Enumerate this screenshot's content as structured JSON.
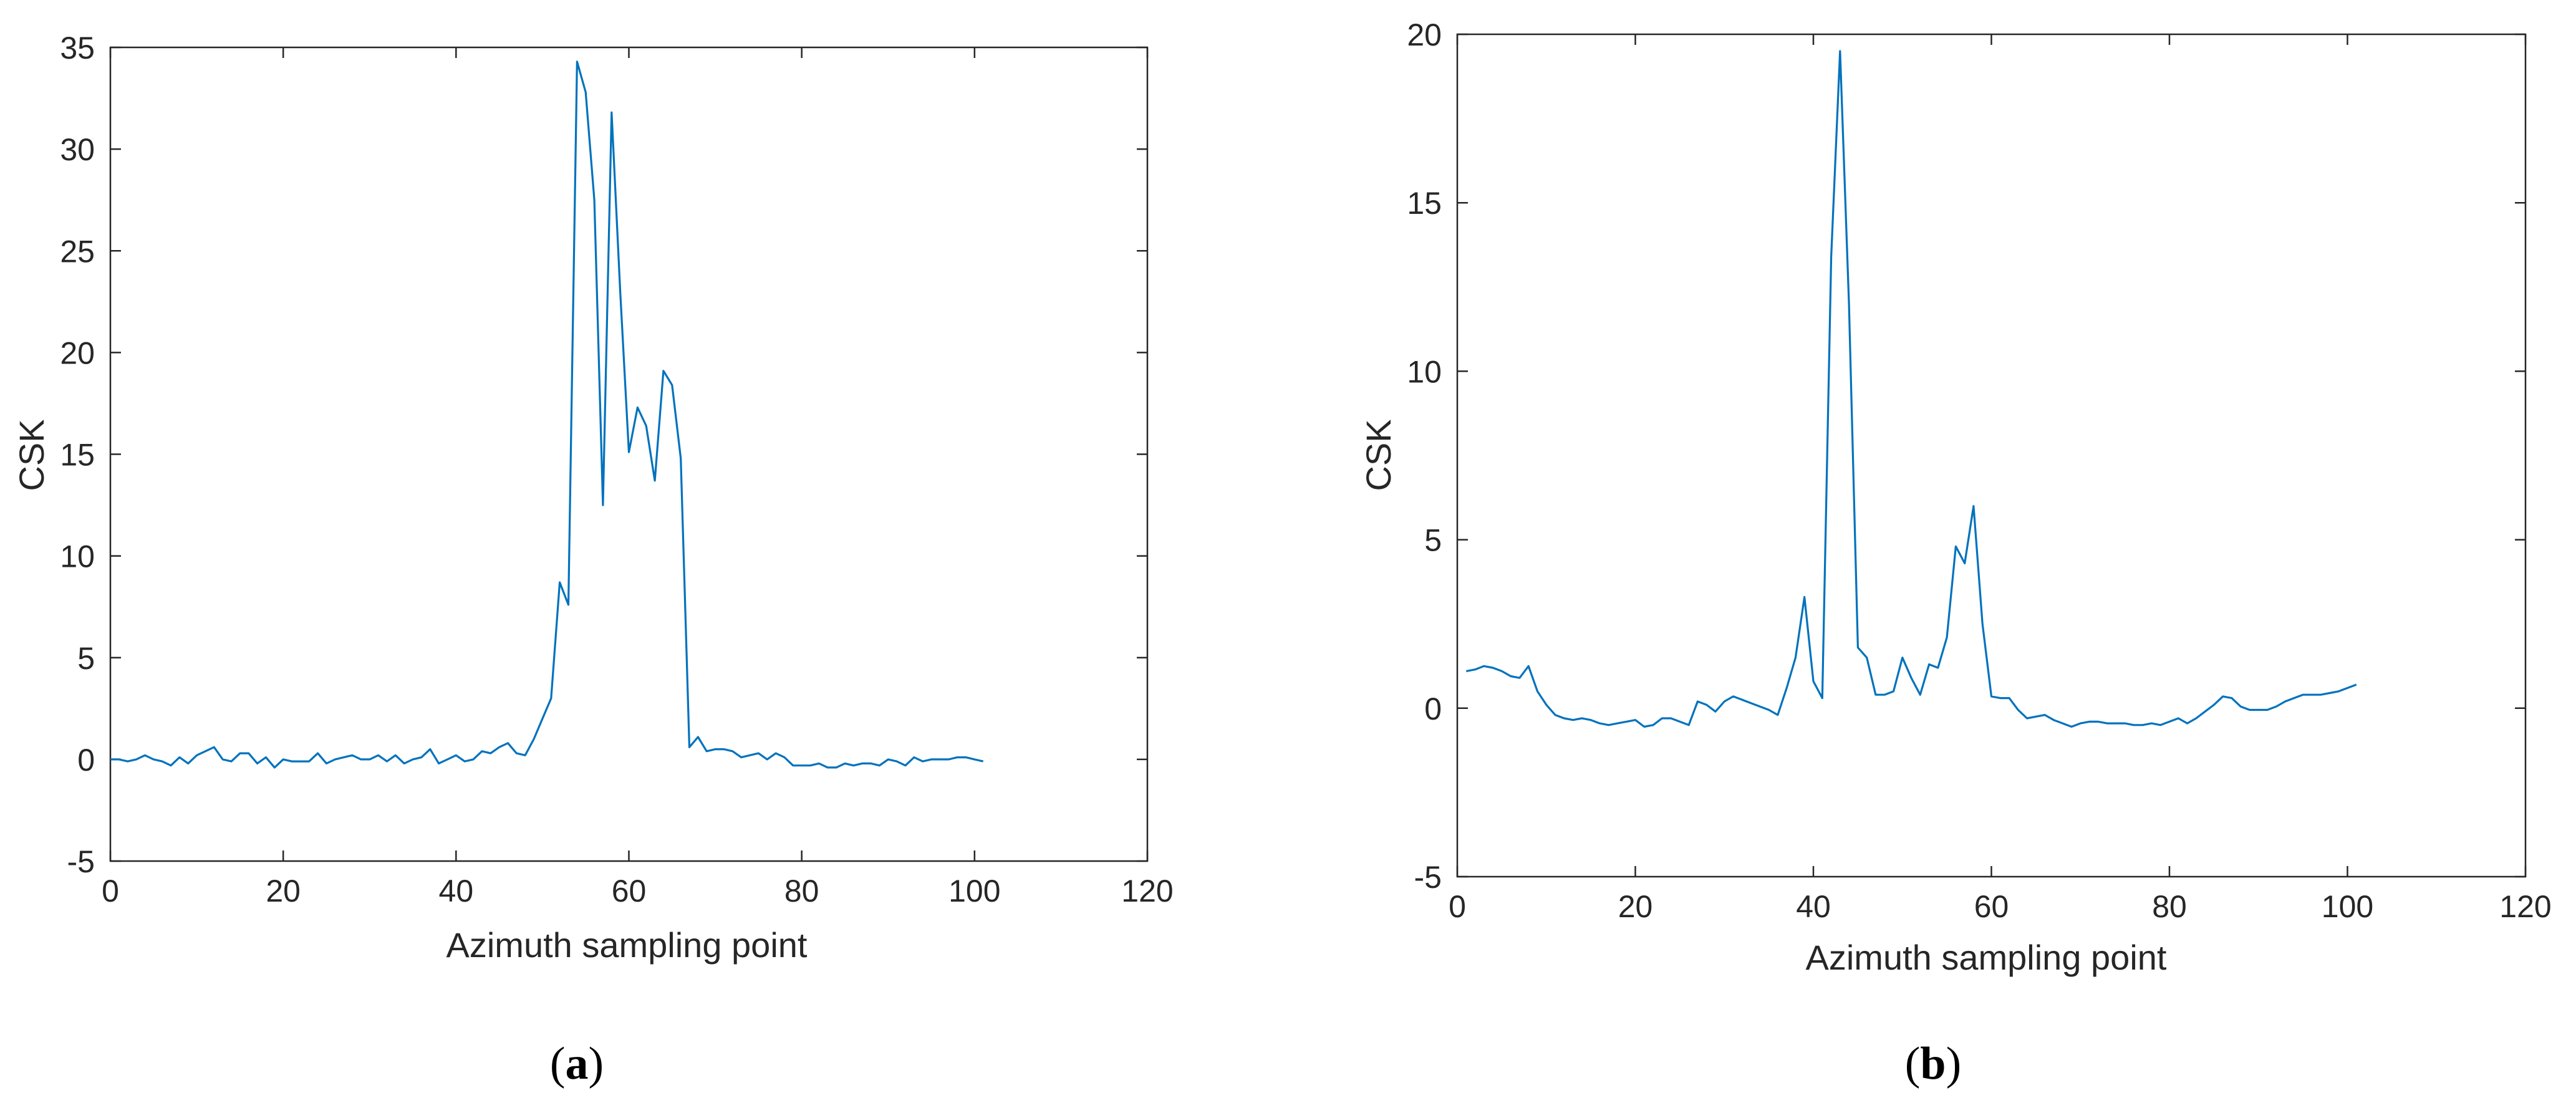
{
  "colors": {
    "series": "#0072BD",
    "axis": "#262626"
  },
  "panels": [
    {
      "label_open": "(",
      "label_letter": "a",
      "label_close": ")",
      "chart_data": {
        "type": "line",
        "xlabel": "Azimuth sampling point",
        "ylabel": "CSK",
        "xlim": [
          0,
          120
        ],
        "ylim": [
          -5,
          35
        ],
        "xticks": [
          0,
          20,
          40,
          60,
          80,
          100,
          120
        ],
        "yticks": [
          -5,
          0,
          5,
          10,
          15,
          20,
          25,
          30,
          35
        ],
        "grid": false,
        "x": [
          0,
          1,
          2,
          3,
          4,
          5,
          6,
          7,
          8,
          9,
          10,
          11,
          12,
          13,
          14,
          15,
          16,
          17,
          18,
          19,
          20,
          21,
          22,
          23,
          24,
          25,
          26,
          27,
          28,
          29,
          30,
          31,
          32,
          33,
          34,
          35,
          36,
          37,
          38,
          39,
          40,
          41,
          42,
          43,
          44,
          45,
          46,
          47,
          48,
          49,
          50,
          51,
          52,
          53,
          54,
          55,
          56,
          57,
          58,
          59,
          60,
          61,
          62,
          63,
          64,
          65,
          66,
          67,
          68,
          69,
          70,
          71,
          72,
          73,
          74,
          75,
          76,
          77,
          78,
          79,
          80,
          81,
          82,
          83,
          84,
          85,
          86,
          87,
          88,
          89,
          90,
          91,
          92,
          93,
          94,
          95,
          96,
          97,
          98,
          99,
          100,
          101
        ],
        "values": [
          0.0,
          0.0,
          -0.1,
          0.0,
          0.2,
          0.0,
          -0.1,
          -0.3,
          0.1,
          -0.2,
          0.2,
          0.4,
          0.6,
          0.0,
          -0.1,
          0.3,
          0.3,
          -0.2,
          0.1,
          -0.4,
          0.0,
          -0.1,
          -0.1,
          -0.1,
          0.3,
          -0.2,
          0.0,
          0.1,
          0.2,
          0.0,
          0.0,
          0.2,
          -0.1,
          0.2,
          -0.2,
          0.0,
          0.1,
          0.5,
          -0.2,
          0.0,
          0.2,
          -0.1,
          0.0,
          0.4,
          0.3,
          0.6,
          0.8,
          0.3,
          0.2,
          1.0,
          2.0,
          3.0,
          8.7,
          7.6,
          34.3,
          32.8,
          27.5,
          12.5,
          31.8,
          23.0,
          15.1,
          17.3,
          16.4,
          13.7,
          19.1,
          18.4,
          14.8,
          0.6,
          1.1,
          0.4,
          0.5,
          0.5,
          0.4,
          0.1,
          0.2,
          0.3,
          0.0,
          0.3,
          0.1,
          -0.3,
          -0.3,
          -0.3,
          -0.2,
          -0.4,
          -0.4,
          -0.2,
          -0.3,
          -0.2,
          -0.2,
          -0.3,
          0.0,
          -0.1,
          -0.3,
          0.1,
          -0.1,
          0.0,
          0.0,
          0.0,
          0.1,
          0.1,
          0.0,
          -0.1
        ]
      }
    },
    {
      "label_open": "(",
      "label_letter": "b",
      "label_close": ")",
      "chart_data": {
        "type": "line",
        "xlabel": "Azimuth sampling point",
        "ylabel": "CSK",
        "xlim": [
          0,
          120
        ],
        "ylim": [
          -5,
          20
        ],
        "xticks": [
          0,
          20,
          40,
          60,
          80,
          100,
          120
        ],
        "yticks": [
          -5,
          0,
          5,
          10,
          15,
          20
        ],
        "grid": false,
        "x": [
          1,
          2,
          3,
          4,
          5,
          6,
          7,
          8,
          9,
          10,
          11,
          12,
          13,
          14,
          15,
          16,
          17,
          18,
          19,
          20,
          21,
          22,
          23,
          24,
          25,
          26,
          27,
          28,
          29,
          30,
          31,
          32,
          33,
          34,
          35,
          36,
          37,
          38,
          39,
          40,
          41,
          42,
          43,
          44,
          45,
          46,
          47,
          48,
          49,
          50,
          51,
          52,
          53,
          54,
          55,
          56,
          57,
          58,
          59,
          60,
          61,
          62,
          63,
          64,
          65,
          66,
          67,
          68,
          69,
          70,
          71,
          72,
          73,
          74,
          75,
          76,
          77,
          78,
          79,
          80,
          81,
          82,
          83,
          84,
          85,
          86,
          87,
          88,
          89,
          90,
          91,
          92,
          93,
          94,
          95,
          96,
          97,
          98,
          99,
          100,
          101
        ],
        "values": [
          1.1,
          1.15,
          1.25,
          1.2,
          1.1,
          0.95,
          0.9,
          1.25,
          0.5,
          0.1,
          -0.2,
          -0.3,
          -0.35,
          -0.3,
          -0.35,
          -0.45,
          -0.5,
          -0.45,
          -0.4,
          -0.35,
          -0.55,
          -0.5,
          -0.3,
          -0.3,
          -0.4,
          -0.5,
          0.2,
          0.1,
          -0.1,
          0.2,
          0.35,
          0.25,
          0.15,
          0.05,
          -0.05,
          -0.2,
          0.6,
          1.5,
          3.3,
          0.8,
          0.3,
          13.4,
          19.5,
          12.0,
          1.8,
          1.5,
          0.4,
          0.4,
          0.5,
          1.5,
          0.9,
          0.4,
          1.3,
          1.2,
          2.1,
          4.8,
          4.3,
          6.0,
          2.5,
          0.35,
          0.3,
          0.3,
          -0.05,
          -0.3,
          -0.25,
          -0.2,
          -0.35,
          -0.45,
          -0.55,
          -0.45,
          -0.4,
          -0.4,
          -0.45,
          -0.45,
          -0.45,
          -0.5,
          -0.5,
          -0.45,
          -0.5,
          -0.4,
          -0.3,
          -0.45,
          -0.3,
          -0.1,
          0.1,
          0.35,
          0.3,
          0.05,
          -0.05,
          -0.05,
          -0.05,
          0.05,
          0.2,
          0.3,
          0.4,
          0.4,
          0.4,
          0.45,
          0.5,
          0.6,
          0.7
        ]
      }
    }
  ]
}
